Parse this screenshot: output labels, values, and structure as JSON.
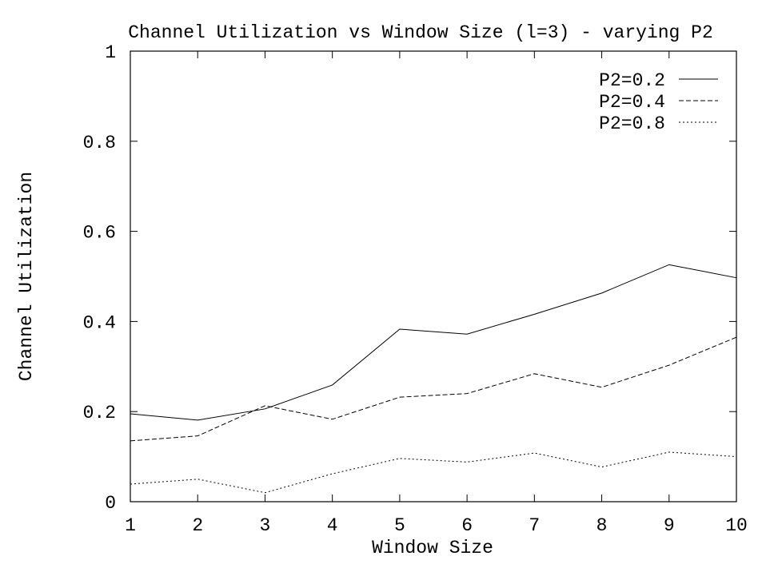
{
  "chart_data": {
    "type": "line",
    "title": "Channel Utilization vs Window Size (l=3) - varying P2",
    "xlabel": "Window Size",
    "ylabel": "Channel Utilization",
    "xlim": [
      1,
      10
    ],
    "ylim": [
      0,
      1
    ],
    "x": [
      1,
      2,
      3,
      4,
      5,
      6,
      7,
      8,
      9,
      10
    ],
    "x_ticks": [
      "1",
      "2",
      "3",
      "4",
      "5",
      "6",
      "7",
      "8",
      "9",
      "10"
    ],
    "y_tick_values": [
      0,
      0.2,
      0.4,
      0.6,
      0.8,
      1
    ],
    "y_ticks": [
      "0",
      "0.2",
      "0.4",
      "0.6",
      "0.8",
      "1"
    ],
    "grid": false,
    "legend_position": "top-right",
    "series": [
      {
        "name": "P2=0.2",
        "style": "solid",
        "values": [
          0.195,
          0.181,
          0.206,
          0.259,
          0.383,
          0.372,
          0.416,
          0.463,
          0.526,
          0.497
        ]
      },
      {
        "name": "P2=0.4",
        "style": "dashed",
        "values": [
          0.135,
          0.146,
          0.213,
          0.183,
          0.232,
          0.24,
          0.284,
          0.254,
          0.303,
          0.365
        ]
      },
      {
        "name": "P2=0.8",
        "style": "dotted",
        "values": [
          0.039,
          0.05,
          0.02,
          0.062,
          0.096,
          0.088,
          0.108,
          0.077,
          0.11,
          0.1
        ]
      }
    ]
  }
}
